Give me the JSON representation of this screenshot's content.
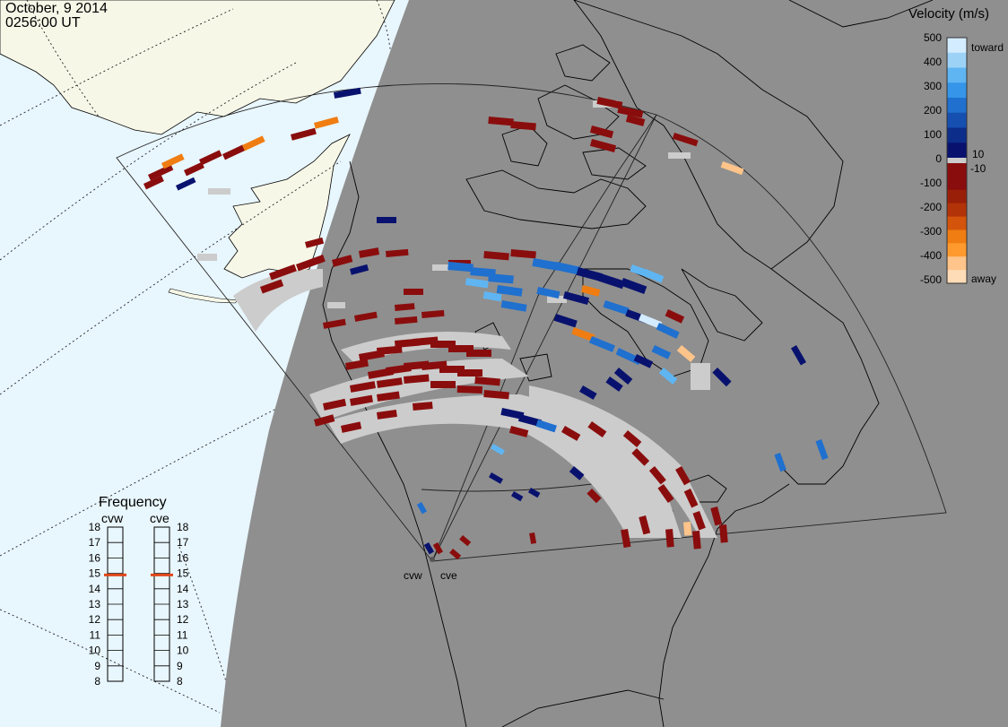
{
  "header": {
    "date": "October, 9 2014",
    "time": "0256:00 UT"
  },
  "velocity_scale": {
    "title": "Velocity (m/s)",
    "ticks": [
      "500",
      "400",
      "300",
      "200",
      "100",
      "0",
      "-100",
      "-200",
      "-300",
      "-400",
      "-500"
    ],
    "small_ticks": [
      "10",
      "-10"
    ],
    "toward_label": "toward",
    "away_label": "away",
    "colors": [
      "#d4ecff",
      "#9dd2f7",
      "#5fb5f2",
      "#3595e8",
      "#1f70cf",
      "#154fb0",
      "#0d2d8a",
      "#08126e",
      "#cccccc",
      "#8a0d0d",
      "#8a0d0d",
      "#9a1f08",
      "#b23308",
      "#d3540a",
      "#f07d12",
      "#ff9a2e",
      "#ffc48a",
      "#ffdcb8"
    ]
  },
  "frequency_panel": {
    "title": "Frequency",
    "radars": [
      {
        "name": "cvw",
        "frequency_mhz": 14.9
      },
      {
        "name": "cve",
        "frequency_mhz": 14.9
      }
    ],
    "scale": [
      "18",
      "17",
      "16",
      "15",
      "14",
      "13",
      "12",
      "11",
      "10",
      "9",
      "8"
    ],
    "min": 8,
    "max": 18,
    "marker_color": "#e0461a"
  },
  "radar_sites": [
    {
      "name": "cvw"
    },
    {
      "name": "cve"
    }
  ],
  "map": {
    "night_color": "#8f8f8f",
    "ocean_day_color": "#e8f6fd",
    "land_day_color": "#f7f7e8",
    "ground_scatter_color": "#cccccc",
    "coastline_color": "#000000"
  }
}
